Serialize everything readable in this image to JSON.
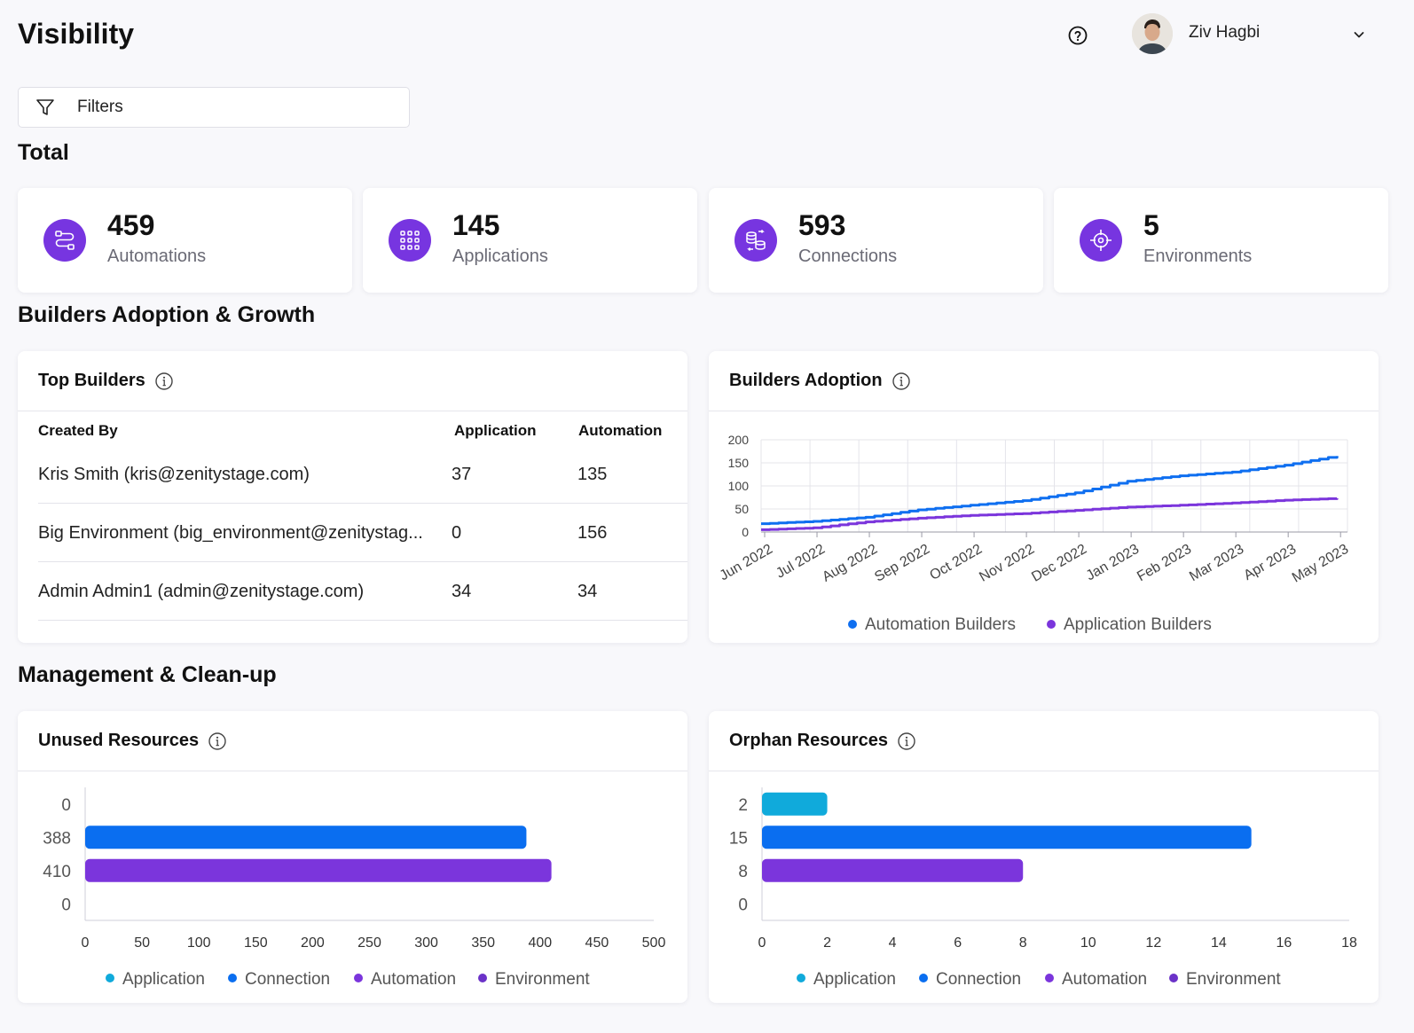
{
  "header": {
    "title": "Visibility",
    "user_name": "Ziv Hagbi"
  },
  "filters": {
    "label": "Filters"
  },
  "totals": {
    "section_title": "Total",
    "cards": [
      {
        "value": "459",
        "label": "Automations",
        "icon": "automation-flow-icon"
      },
      {
        "value": "145",
        "label": "Applications",
        "icon": "apps-grid-icon"
      },
      {
        "value": "593",
        "label": "Connections",
        "icon": "database-sync-icon"
      },
      {
        "value": "5",
        "label": "Environments",
        "icon": "crosshair-icon"
      }
    ]
  },
  "builders_section": {
    "title": "Builders Adoption & Growth"
  },
  "top_builders": {
    "title": "Top Builders",
    "columns": [
      "Created By",
      "Application",
      "Automation"
    ],
    "rows": [
      {
        "created_by": "Kris Smith (kris@zenitystage.com)",
        "application": "37",
        "automation": "135"
      },
      {
        "created_by": "Big Environment (big_environment@zenitystag...",
        "application": "0",
        "automation": "156"
      },
      {
        "created_by": "Admin Admin1 (admin@zenitystage.com)",
        "application": "34",
        "automation": "34"
      }
    ]
  },
  "builders_adoption": {
    "title": "Builders Adoption"
  },
  "management_section": {
    "title": "Management & Clean-up"
  },
  "unused_resources": {
    "title": "Unused Resources"
  },
  "orphan_resources": {
    "title": "Orphan Resources"
  },
  "colors": {
    "accent_purple": "#7735e0",
    "automation_blue": "#0f6ff0",
    "application_cyan": "#10aadb",
    "connection_blue": "#0a6ef0",
    "automation_purple": "#7b35dc",
    "environment_purple": "#6b32c8"
  },
  "chart_data": [
    {
      "type": "line",
      "title": "Builders Adoption",
      "x": [
        "Jun 2022",
        "Jul 2022",
        "Aug 2022",
        "Sep 2022",
        "Oct 2022",
        "Nov 2022",
        "Dec 2022",
        "Jan 2023",
        "Feb 2023",
        "Mar 2023",
        "Apr 2023",
        "May 2023"
      ],
      "series": [
        {
          "name": "Automation Builders",
          "values": [
            18,
            23,
            32,
            48,
            58,
            68,
            85,
            110,
            122,
            130,
            145,
            165
          ]
        },
        {
          "name": "Application Builders",
          "values": [
            5,
            9,
            22,
            30,
            36,
            40,
            47,
            54,
            58,
            63,
            69,
            73
          ]
        }
      ],
      "y_ticks": [
        0,
        50,
        100,
        150,
        200
      ],
      "ylim": [
        0,
        200
      ],
      "grid": true,
      "legend": "bottom"
    },
    {
      "type": "bar",
      "orientation": "horizontal",
      "title": "Unused Resources",
      "categories": [
        "Application",
        "Connection",
        "Automation",
        "Environment"
      ],
      "values": [
        0,
        388,
        410,
        0
      ],
      "value_labels": [
        "0",
        "388",
        "410",
        "0"
      ],
      "x_ticks": [
        0,
        50,
        100,
        150,
        200,
        250,
        300,
        350,
        400,
        450,
        500
      ],
      "xlim": [
        0,
        500
      ],
      "legend": "bottom"
    },
    {
      "type": "bar",
      "orientation": "horizontal",
      "title": "Orphan Resources",
      "categories": [
        "Application",
        "Connection",
        "Automation",
        "Environment"
      ],
      "values": [
        2,
        15,
        8,
        0
      ],
      "value_labels": [
        "2",
        "15",
        "8",
        "0"
      ],
      "x_ticks": [
        0,
        2,
        4,
        6,
        8,
        10,
        12,
        14,
        16,
        18
      ],
      "xlim": [
        0,
        18
      ],
      "legend": "bottom"
    }
  ]
}
